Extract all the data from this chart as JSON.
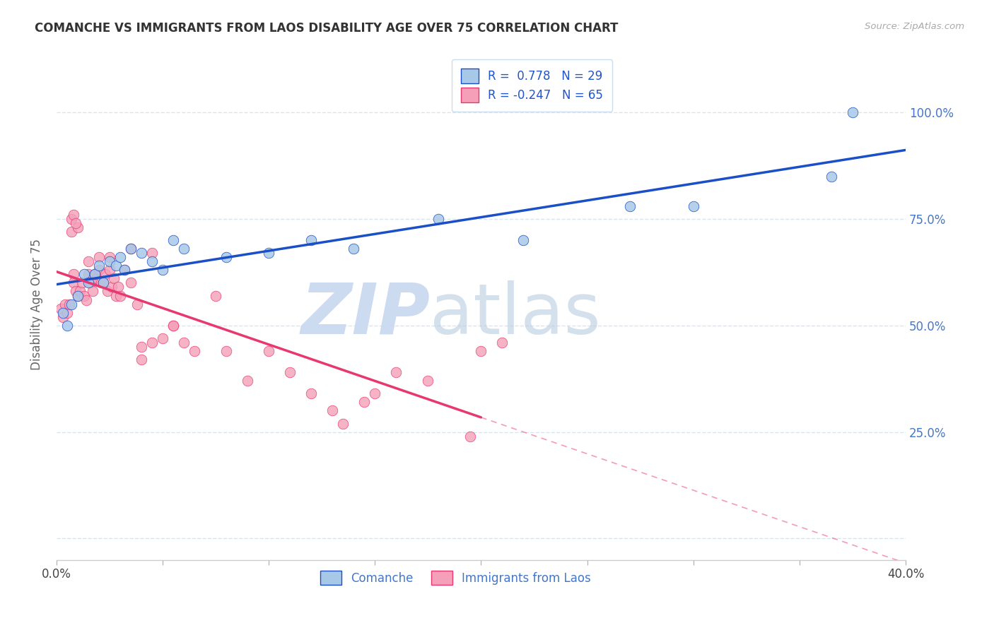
{
  "title": "COMANCHE VS IMMIGRANTS FROM LAOS DISABILITY AGE OVER 75 CORRELATION CHART",
  "source": "Source: ZipAtlas.com",
  "ylabel": "Disability Age Over 75",
  "xlim": [
    0.0,
    40.0
  ],
  "ylim": [
    -5.0,
    115.0
  ],
  "yticks": [
    0.0,
    25.0,
    50.0,
    75.0,
    100.0
  ],
  "ytick_labels": [
    "",
    "25.0%",
    "50.0%",
    "75.0%",
    "100.0%"
  ],
  "xtick_vals": [
    0.0,
    5.0,
    10.0,
    15.0,
    20.0,
    25.0,
    30.0,
    35.0,
    40.0
  ],
  "comanche_R": 0.778,
  "comanche_N": 29,
  "laos_R": -0.247,
  "laos_N": 65,
  "comanche_color": "#a8c8e8",
  "laos_color": "#f5a0b8",
  "comanche_line_color": "#1a4fc8",
  "laos_line_color": "#e83870",
  "watermark_zip_color": "#c8d8f0",
  "watermark_atlas_color": "#b8cce0",
  "grid_color": "#d8e4f0",
  "background_color": "#ffffff",
  "comanche_x": [
    0.3,
    0.5,
    0.7,
    1.0,
    1.3,
    1.5,
    1.8,
    2.0,
    2.2,
    2.5,
    2.8,
    3.0,
    3.2,
    3.5,
    4.0,
    4.5,
    5.0,
    5.5,
    6.0,
    8.0,
    10.0,
    12.0,
    14.0,
    18.0,
    22.0,
    27.0,
    30.0,
    36.5,
    37.5
  ],
  "comanche_y": [
    53,
    50,
    55,
    57,
    62,
    60,
    62,
    64,
    60,
    65,
    64,
    66,
    63,
    68,
    67,
    65,
    63,
    70,
    68,
    66,
    67,
    70,
    68,
    75,
    70,
    78,
    78,
    85,
    100
  ],
  "laos_x": [
    0.2,
    0.3,
    0.4,
    0.5,
    0.6,
    0.7,
    0.7,
    0.8,
    0.8,
    0.9,
    1.0,
    1.0,
    1.1,
    1.2,
    1.3,
    1.4,
    1.5,
    1.6,
    1.7,
    1.8,
    1.9,
    2.0,
    2.1,
    2.2,
    2.3,
    2.4,
    2.5,
    2.6,
    2.7,
    2.8,
    2.9,
    3.0,
    3.2,
    3.5,
    3.8,
    4.0,
    4.5,
    5.0,
    5.5,
    6.0,
    6.5,
    7.5,
    8.0,
    9.0,
    10.0,
    11.0,
    12.0,
    13.0,
    13.5,
    14.5,
    15.0,
    16.0,
    17.5,
    19.5,
    4.0,
    0.8,
    0.9,
    1.5,
    2.0,
    2.5,
    3.5,
    4.5,
    5.5,
    20.0,
    21.0
  ],
  "laos_y": [
    54,
    52,
    55,
    53,
    55,
    75,
    72,
    62,
    60,
    58,
    57,
    73,
    58,
    60,
    57,
    56,
    62,
    60,
    58,
    62,
    61,
    63,
    60,
    60,
    62,
    58,
    63,
    59,
    61,
    57,
    59,
    57,
    63,
    60,
    55,
    42,
    46,
    47,
    50,
    46,
    44,
    57,
    44,
    37,
    44,
    39,
    34,
    30,
    27,
    32,
    34,
    39,
    37,
    24,
    45,
    76,
    74,
    65,
    66,
    66,
    68,
    67,
    50,
    44,
    46
  ],
  "laos_solid_end": 20.0,
  "comanche_line_start_x": 0.0,
  "comanche_line_end_x": 40.0
}
